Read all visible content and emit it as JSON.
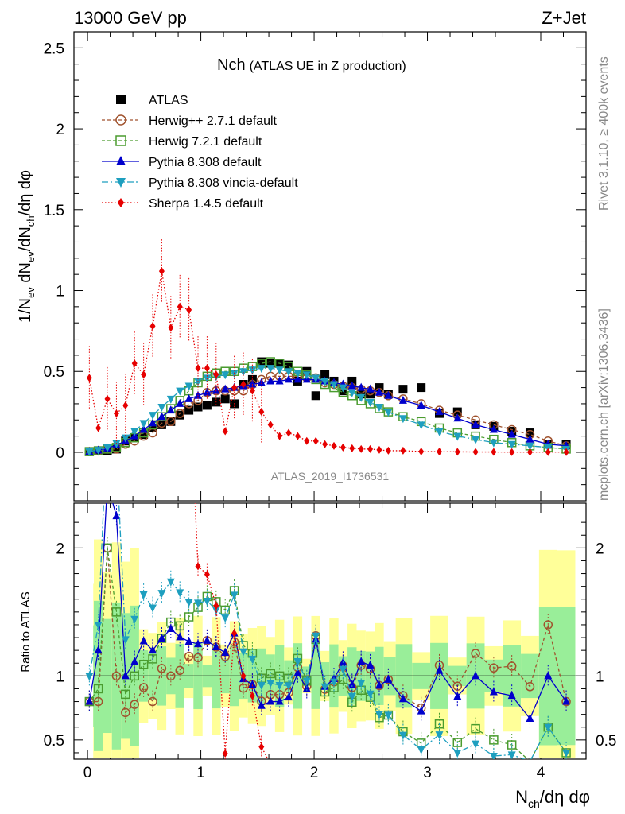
{
  "header": {
    "energy_label": "13000 GeV pp",
    "process_label": "Z+Jet",
    "side_top": "Rivet 3.1.10, ≥ 400k events",
    "side_bottom": "mcplots.cern.ch [arXiv:1306.3436]",
    "watermark": "ATLAS_2019_I1736531"
  },
  "chart_data": {
    "type": "scatter",
    "title_main": "Nch",
    "title_sub": "(ATLAS UE in Z production)",
    "ylabel_main": "1/N_ev dN_ev/dN_ch/dη dφ",
    "ylabel_ratio": "Ratio to ATLAS",
    "xlabel": "N_ch/dη dφ",
    "xlim": [
      -0.12,
      4.4
    ],
    "ylim_main": [
      -0.3,
      2.6
    ],
    "ylim_ratio": [
      0.35,
      2.35
    ],
    "xticks": [
      "0",
      "1",
      "2",
      "3",
      "4"
    ],
    "yticks_main": [
      "0",
      "0.5",
      "1",
      "1.5",
      "2",
      "2.5"
    ],
    "yticks_ratio": [
      "0.5",
      "1",
      "2"
    ],
    "x": [
      0.016,
      0.095,
      0.175,
      0.255,
      0.335,
      0.415,
      0.495,
      0.575,
      0.655,
      0.735,
      0.815,
      0.895,
      0.975,
      1.055,
      1.135,
      1.215,
      1.295,
      1.375,
      1.455,
      1.535,
      1.615,
      1.695,
      1.775,
      1.855,
      1.935,
      2.015,
      2.095,
      2.175,
      2.255,
      2.335,
      2.415,
      2.495,
      2.575,
      2.655,
      2.785,
      2.945,
      3.105,
      3.265,
      3.425,
      3.585,
      3.745,
      3.905,
      4.065,
      4.225
    ],
    "series": [
      {
        "name": "ATLAS",
        "color": "#000000",
        "marker": "square",
        "values": [
          0.005,
          0.01,
          0.01,
          0.02,
          0.07,
          0.09,
          0.11,
          0.15,
          0.17,
          0.19,
          0.23,
          0.26,
          0.28,
          0.29,
          0.31,
          0.33,
          0.3,
          0.42,
          0.45,
          0.56,
          0.55,
          0.55,
          0.54,
          0.44,
          0.5,
          0.35,
          0.48,
          0.44,
          0.38,
          0.44,
          0.36,
          0.36,
          0.4,
          0.36,
          0.39,
          0.4,
          0.24,
          0.25,
          0.17,
          0.16,
          0.13,
          0.12,
          0.05,
          0.05
        ]
      },
      {
        "name": "Herwig++ 2.7.1 default",
        "color": "#a0522d",
        "marker": "circle",
        "values": [
          0.004,
          0.008,
          0.02,
          0.02,
          0.05,
          0.07,
          0.1,
          0.12,
          0.18,
          0.19,
          0.24,
          0.3,
          0.32,
          0.37,
          0.38,
          0.38,
          0.38,
          0.38,
          0.42,
          0.45,
          0.47,
          0.47,
          0.47,
          0.47,
          0.46,
          0.46,
          0.43,
          0.42,
          0.41,
          0.4,
          0.39,
          0.38,
          0.37,
          0.35,
          0.33,
          0.3,
          0.26,
          0.23,
          0.2,
          0.17,
          0.14,
          0.11,
          0.07,
          0.04
        ]
      },
      {
        "name": "Herwig 7.2.1 default",
        "color": "#4a9c2f",
        "marker": "square-open",
        "values": [
          0.004,
          0.009,
          0.02,
          0.03,
          0.06,
          0.09,
          0.12,
          0.17,
          0.22,
          0.27,
          0.32,
          0.38,
          0.43,
          0.47,
          0.49,
          0.5,
          0.5,
          0.52,
          0.53,
          0.55,
          0.56,
          0.55,
          0.53,
          0.5,
          0.48,
          0.45,
          0.42,
          0.4,
          0.37,
          0.35,
          0.32,
          0.3,
          0.27,
          0.25,
          0.22,
          0.19,
          0.15,
          0.12,
          0.1,
          0.08,
          0.06,
          0.04,
          0.03,
          0.02
        ]
      },
      {
        "name": "Pythia 8.308 default",
        "color": "#0000cc",
        "marker": "triangle-up",
        "values": [
          0.004,
          0.012,
          0.025,
          0.045,
          0.07,
          0.1,
          0.14,
          0.18,
          0.22,
          0.26,
          0.3,
          0.33,
          0.35,
          0.37,
          0.38,
          0.39,
          0.4,
          0.41,
          0.42,
          0.43,
          0.44,
          0.44,
          0.45,
          0.45,
          0.45,
          0.45,
          0.44,
          0.43,
          0.42,
          0.41,
          0.4,
          0.39,
          0.37,
          0.35,
          0.32,
          0.29,
          0.25,
          0.21,
          0.17,
          0.14,
          0.11,
          0.08,
          0.05,
          0.04
        ]
      },
      {
        "name": "Pythia 8.308 vincia-default",
        "color": "#1e9fbf",
        "marker": "triangle-down",
        "values": [
          0.005,
          0.014,
          0.03,
          0.055,
          0.09,
          0.13,
          0.18,
          0.23,
          0.28,
          0.33,
          0.38,
          0.41,
          0.44,
          0.46,
          0.47,
          0.48,
          0.49,
          0.5,
          0.51,
          0.52,
          0.52,
          0.51,
          0.5,
          0.49,
          0.48,
          0.46,
          0.44,
          0.42,
          0.4,
          0.37,
          0.34,
          0.31,
          0.28,
          0.25,
          0.21,
          0.17,
          0.13,
          0.1,
          0.08,
          0.06,
          0.05,
          0.04,
          0.03,
          0.02
        ]
      },
      {
        "name": "Sherpa 1.4.5 default",
        "color": "#e60000",
        "marker": "diamond",
        "values": [
          0.46,
          0.15,
          0.33,
          0.24,
          0.29,
          0.55,
          0.48,
          0.78,
          1.12,
          0.77,
          0.9,
          0.88,
          0.52,
          0.52,
          0.48,
          0.13,
          0.4,
          0.42,
          0.38,
          0.25,
          0.17,
          0.1,
          0.12,
          0.1,
          0.07,
          0.07,
          0.05,
          0.04,
          0.03,
          0.025,
          0.02,
          0.02,
          0.015,
          0.01,
          0.01,
          0.005,
          0.004,
          0.003,
          0.002,
          0.002,
          0.001,
          0.001,
          0.001,
          0.001
        ]
      }
    ]
  }
}
